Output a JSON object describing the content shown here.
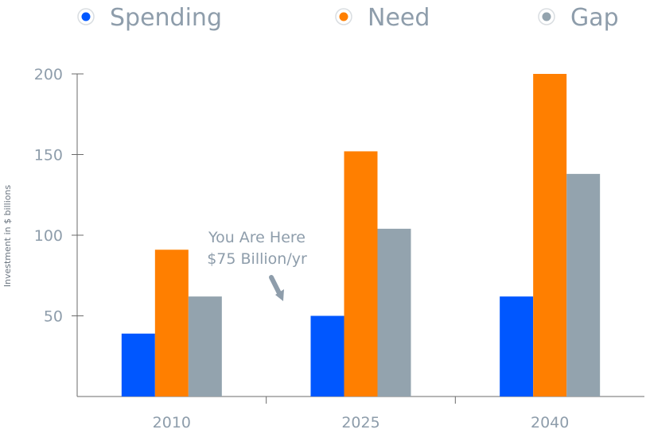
{
  "chart_data": {
    "type": "bar",
    "categories": [
      "2010",
      "2025",
      "2040"
    ],
    "series": [
      {
        "name": "Spending",
        "values": [
          39,
          50,
          62
        ],
        "color": "#0057ff"
      },
      {
        "name": "Need",
        "values": [
          91,
          152,
          200
        ],
        "color": "#ff7f00"
      },
      {
        "name": "Gap",
        "values": [
          62,
          104,
          138
        ],
        "color": "#93a3ae"
      }
    ],
    "title": "",
    "xlabel": "",
    "ylabel": "Investment in $ billions",
    "ylim": [
      0,
      200
    ],
    "yticks": [
      "50",
      "100",
      "150",
      "200"
    ],
    "grid": false,
    "legend_position": "top",
    "annotation": {
      "lines": [
        "You Are Here",
        "$75 Billion/yr"
      ],
      "arrow_icon": "arrow-down-icon"
    }
  }
}
